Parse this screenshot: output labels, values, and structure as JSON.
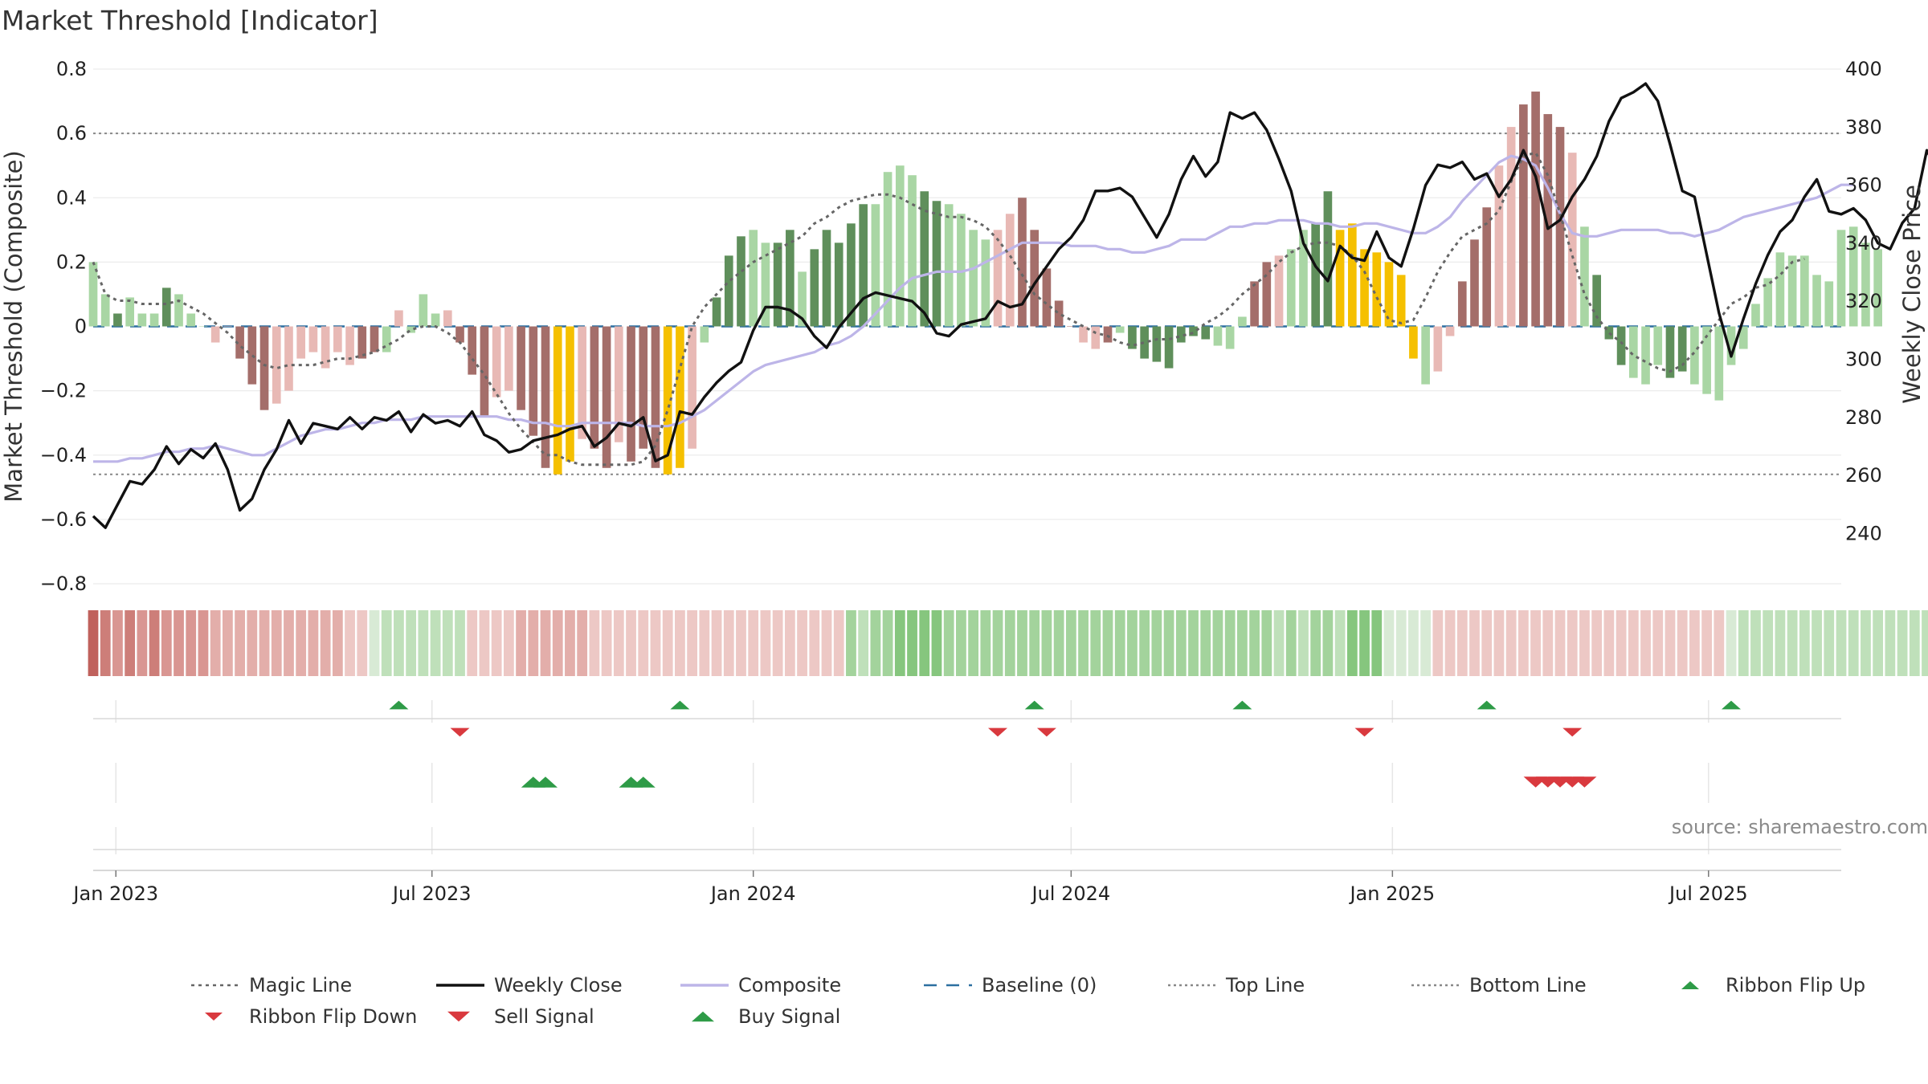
{
  "title": "Market Threshold [Indicator]",
  "source": "source: sharemaestro.com",
  "colors": {
    "strong_green": "#5f8f5b",
    "light_green": "#a9d6a4",
    "strong_red": "#a46e6a",
    "light_red": "#e8b9b5",
    "gold": "#f5c000",
    "magic_line": "#666666",
    "weekly_close": "#111111",
    "composite": "#bdb5e8",
    "baseline": "#2c6fa0",
    "threshold_line": "#888888",
    "buy_green": "#2e9b47",
    "sell_red": "#d9393e"
  },
  "chart_data": {
    "type": "bar",
    "title": "Market Threshold [Indicator]",
    "ylabel_left": "Market Threshold (Composite)",
    "ylabel_right": "Weekly Close Price",
    "ylim_left": [
      -0.8,
      0.8
    ],
    "ylim_right": [
      222.7,
      400
    ],
    "yticks_left": [
      0.8,
      0.6,
      0.4,
      0.2,
      0,
      -0.2,
      -0.4,
      -0.6,
      -0.8
    ],
    "yticks_left_labels": [
      "0.8",
      "0.6",
      "0.4",
      "0.2",
      "0",
      "−0.2",
      "−0.4",
      "−0.6",
      "−0.8"
    ],
    "yticks_right": [
      400,
      380,
      360,
      340,
      320,
      300,
      280,
      260,
      240
    ],
    "x_start": "2022-12-19",
    "x_end": "2025-09-15",
    "xtick_labels": [
      {
        "date": "2023-01-01",
        "label": "Jan 2023"
      },
      {
        "date": "2023-07-01",
        "label": "Jul 2023"
      },
      {
        "date": "2024-01-01",
        "label": "Jan 2024"
      },
      {
        "date": "2024-07-01",
        "label": "Jul 2024"
      },
      {
        "date": "2025-01-01",
        "label": "Jan 2025"
      },
      {
        "date": "2025-07-01",
        "label": "Jul 2025"
      }
    ],
    "top_line": 0.6,
    "bottom_line": -0.46,
    "baseline": 0,
    "magic_line_start_date": "2022-12-19",
    "magic_line_weekly": [
      0.2,
      0.1,
      0.08,
      0.08,
      0.07,
      0.07,
      0.07,
      0.08,
      0.06,
      0.04,
      0.01,
      -0.02,
      -0.06,
      -0.09,
      -0.12,
      -0.13,
      -0.12,
      -0.12,
      -0.12,
      -0.11,
      -0.1,
      -0.1,
      -0.09,
      -0.08,
      -0.06,
      -0.04,
      -0.01,
      0.0,
      0.0,
      -0.02,
      -0.05,
      -0.1,
      -0.15,
      -0.21,
      -0.27,
      -0.32,
      -0.36,
      -0.4,
      -0.4,
      -0.42,
      -0.43,
      -0.43,
      -0.43,
      -0.43,
      -0.43,
      -0.42,
      -0.37,
      -0.26,
      -0.13,
      0.0,
      0.06,
      0.1,
      0.14,
      0.17,
      0.2,
      0.22,
      0.24,
      0.26,
      0.28,
      0.32,
      0.34,
      0.37,
      0.39,
      0.4,
      0.41,
      0.41,
      0.4,
      0.38,
      0.36,
      0.35,
      0.34,
      0.34,
      0.33,
      0.31,
      0.27,
      0.22,
      0.16,
      0.1,
      0.07,
      0.04,
      0.02,
      0.0,
      -0.02,
      -0.03,
      -0.05,
      -0.06,
      -0.05,
      -0.04,
      -0.04,
      -0.03,
      -0.02,
      0.01,
      0.03,
      0.06,
      0.1,
      0.13,
      0.16,
      0.2,
      0.23,
      0.25,
      0.26,
      0.26,
      0.25,
      0.22,
      0.17,
      0.09,
      0.02,
      0.01,
      0.02,
      0.09,
      0.17,
      0.23,
      0.28,
      0.3,
      0.32,
      0.36,
      0.45,
      0.53,
      0.54,
      0.47,
      0.35,
      0.22,
      0.1,
      0.03,
      -0.02,
      -0.05,
      -0.09,
      -0.11,
      -0.13,
      -0.14,
      -0.12,
      -0.08,
      -0.03,
      0.02,
      0.07,
      0.09,
      0.12,
      0.13,
      0.16,
      0.2,
      0.21
    ],
    "composite_line_weekly": [
      -0.42,
      -0.42,
      -0.42,
      -0.41,
      -0.41,
      -0.4,
      -0.39,
      -0.39,
      -0.38,
      -0.38,
      -0.37,
      -0.38,
      -0.39,
      -0.4,
      -0.4,
      -0.38,
      -0.36,
      -0.34,
      -0.33,
      -0.32,
      -0.32,
      -0.31,
      -0.3,
      -0.3,
      -0.29,
      -0.29,
      -0.29,
      -0.28,
      -0.28,
      -0.28,
      -0.28,
      -0.28,
      -0.28,
      -0.28,
      -0.29,
      -0.29,
      -0.3,
      -0.3,
      -0.31,
      -0.31,
      -0.3,
      -0.3,
      -0.3,
      -0.3,
      -0.3,
      -0.31,
      -0.31,
      -0.31,
      -0.3,
      -0.28,
      -0.26,
      -0.23,
      -0.2,
      -0.17,
      -0.14,
      -0.12,
      -0.11,
      -0.1,
      -0.09,
      -0.08,
      -0.06,
      -0.05,
      -0.03,
      0.0,
      0.04,
      0.08,
      0.12,
      0.15,
      0.16,
      0.17,
      0.17,
      0.17,
      0.18,
      0.2,
      0.22,
      0.24,
      0.26,
      0.26,
      0.26,
      0.26,
      0.25,
      0.25,
      0.25,
      0.24,
      0.24,
      0.23,
      0.23,
      0.24,
      0.25,
      0.27,
      0.27,
      0.27,
      0.29,
      0.31,
      0.31,
      0.32,
      0.32,
      0.33,
      0.33,
      0.33,
      0.32,
      0.32,
      0.31,
      0.31,
      0.32,
      0.32,
      0.31,
      0.3,
      0.29,
      0.29,
      0.31,
      0.34,
      0.39,
      0.43,
      0.47,
      0.51,
      0.53,
      0.52,
      0.5,
      0.43,
      0.35,
      0.29,
      0.28,
      0.28,
      0.29,
      0.3,
      0.3,
      0.3,
      0.3,
      0.29,
      0.29,
      0.28,
      0.29,
      0.3,
      0.32,
      0.34,
      0.35,
      0.36,
      0.37,
      0.38,
      0.39,
      0.4,
      0.42,
      0.44,
      0.44
    ],
    "weekly_close_weekly": [
      246,
      242,
      250,
      258,
      257,
      262,
      270,
      264,
      269,
      266,
      271,
      262,
      248,
      252,
      262,
      269,
      279,
      271,
      278,
      277,
      276,
      280,
      276,
      280,
      279,
      282,
      275,
      281,
      278,
      279,
      277,
      282,
      274,
      272,
      268,
      269,
      272,
      273,
      274,
      276,
      277,
      270,
      273,
      278,
      277,
      280,
      265,
      267,
      282,
      281,
      287,
      292,
      296,
      299,
      310,
      318,
      318,
      317,
      314,
      308,
      304,
      311,
      316,
      321,
      323,
      322,
      321,
      320,
      316,
      309,
      308,
      312,
      313,
      314,
      320,
      318,
      319,
      326,
      332,
      338,
      342,
      348,
      358,
      358,
      359,
      356,
      349,
      342,
      350,
      362,
      370,
      363,
      368,
      385,
      383,
      385,
      379,
      369,
      358,
      340,
      332,
      327,
      339,
      335,
      334,
      344,
      335,
      332,
      345,
      360,
      367,
      366,
      368,
      362,
      364,
      356,
      362,
      372,
      363,
      345,
      348,
      356,
      362,
      370,
      382,
      390,
      392,
      395,
      389,
      374,
      358,
      356,
      336,
      316,
      301,
      314,
      326,
      336,
      344,
      348,
      356,
      362,
      351,
      350,
      352,
      348,
      340,
      338,
      347,
      352,
      372,
      364,
      376
    ],
    "composite_bars": {
      "width_weeks": 0.7,
      "weekly": [
        0.2,
        0.1,
        0.04,
        0.09,
        0.04,
        0.04,
        0.12,
        0.1,
        0.04,
        0.0,
        -0.05,
        -0.0,
        -0.1,
        -0.18,
        -0.26,
        -0.24,
        -0.2,
        -0.1,
        -0.08,
        -0.13,
        -0.08,
        -0.12,
        -0.1,
        -0.08,
        -0.08,
        0.05,
        -0.02,
        0.1,
        0.04,
        0.05,
        -0.05,
        -0.15,
        -0.28,
        -0.22,
        -0.2,
        -0.26,
        -0.34,
        -0.44,
        -0.46,
        -0.42,
        -0.35,
        -0.38,
        -0.44,
        -0.36,
        -0.42,
        -0.38,
        -0.44,
        -0.46,
        -0.44,
        -0.38,
        -0.05,
        0.09,
        0.22,
        0.28,
        0.3,
        0.26,
        0.26,
        0.3,
        0.17,
        0.24,
        0.3,
        0.26,
        0.32,
        0.38,
        0.38,
        0.48,
        0.5,
        0.47,
        0.42,
        0.39,
        0.38,
        0.35,
        0.3,
        0.27,
        0.3,
        0.35,
        0.4,
        0.3,
        0.18,
        0.08,
        0.0,
        -0.05,
        -0.07,
        -0.05,
        -0.02,
        -0.07,
        -0.1,
        -0.11,
        -0.13,
        -0.05,
        -0.03,
        -0.04,
        -0.06,
        -0.07,
        0.03,
        0.14,
        0.2,
        0.22,
        0.24,
        0.3,
        0.32,
        0.42,
        0.3,
        0.32,
        0.24,
        0.23,
        0.2,
        0.16,
        -0.1,
        -0.18,
        -0.14,
        -0.03,
        0.14,
        0.27,
        0.37,
        0.5,
        0.62,
        0.69,
        0.73,
        0.66,
        0.62,
        0.54,
        0.31,
        0.16,
        -0.04,
        -0.12,
        -0.16,
        -0.18,
        -0.12,
        -0.16,
        -0.14,
        -0.18,
        -0.21,
        -0.23,
        -0.12,
        -0.07,
        0.07,
        0.15,
        0.23,
        0.22,
        0.22,
        0.16,
        0.14,
        0.3,
        0.31,
        0.26,
        0.24
      ],
      "color_key": "s = strong green, g = light green, r = strong red, p = light red, y = gold",
      "colors": "ggsgggsggg pprrrppppppprrgpgggp rrrpprrryyprrprrryyp gsssggssgsssssggggssgggg pprrrrrppr gsssssssggg rrpg gssyyyyyyyg pprrrpprrrrp gsssgggssgg"
    },
    "ribbon": {
      "color_key": "1 = dark red ... 5 = pale red, 6 = pale green ... 9 = dark green",
      "weekly": "1232323333444444444445567777777555544444455555555555555555555587889999888888888888888888888888888787887999666655555555555555555555555567777777777777777666665555557888888888888877777777777777777777777777"
    },
    "signals": {
      "ribbon_flip_up": [
        "2023-06-12",
        "2023-11-20",
        "2024-06-10",
        "2024-10-07",
        "2025-02-24",
        "2025-07-14"
      ],
      "ribbon_flip_down": [
        "2023-07-17",
        "2024-05-20",
        "2024-06-17",
        "2024-12-16",
        "2025-04-14"
      ],
      "buy_signal": [
        "2023-08-28",
        "2023-09-04",
        "2023-10-23",
        "2023-10-30"
      ],
      "sell_signal": [
        "2025-03-24",
        "2025-03-31",
        "2025-04-07",
        "2025-04-14",
        "2025-04-21"
      ]
    },
    "legend": [
      {
        "name": "Magic Line",
        "kind": "dotted",
        "color": "#666666"
      },
      {
        "name": "Weekly Close",
        "kind": "solid",
        "color": "#111111"
      },
      {
        "name": "Composite",
        "kind": "solid",
        "color": "#bdb5e8"
      },
      {
        "name": "Baseline (0)",
        "kind": "dashed",
        "color": "#2c6fa0"
      },
      {
        "name": "Top Line",
        "kind": "dotted",
        "color": "#888888"
      },
      {
        "name": "Bottom Line",
        "kind": "dotted",
        "color": "#888888"
      },
      {
        "name": "Ribbon Flip Up",
        "kind": "triangle-up",
        "color": "#2e9b47"
      },
      {
        "name": "Ribbon Flip Down",
        "kind": "triangle-down",
        "color": "#d9393e"
      },
      {
        "name": "Sell Signal",
        "kind": "triangle-down-large",
        "color": "#d9393e"
      },
      {
        "name": "Buy Signal",
        "kind": "triangle-up-large",
        "color": "#2e9b47"
      }
    ],
    "legend_placement": "bottom",
    "grid": true
  }
}
